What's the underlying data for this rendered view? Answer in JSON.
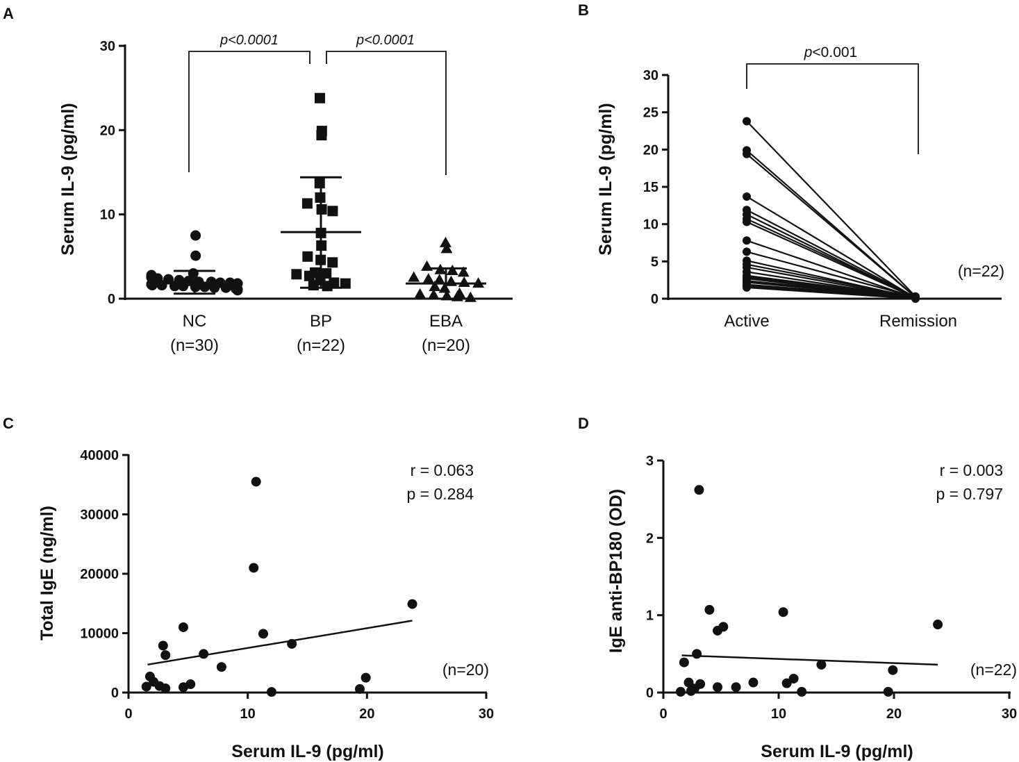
{
  "colors": {
    "ink": "#111111",
    "background": "#ffffff"
  },
  "chart_data": [
    {
      "panel": "A",
      "type": "scatter",
      "ylabel": "Serum IL-9 (pg/ml)",
      "ylim": [
        0,
        30
      ],
      "yticks": [
        "0",
        "10",
        "20",
        "30"
      ],
      "groups": [
        {
          "name": "NC",
          "n_label": "(n=30)",
          "marker": "circle",
          "mean": 1.9,
          "sd_upper": 3.3,
          "sd_lower": 0.6,
          "values": [
            7.5,
            5.1,
            3.0,
            2.8,
            2.5,
            2.4,
            2.2,
            2.1,
            2.0,
            2.0,
            1.9,
            1.9,
            1.8,
            1.8,
            1.8,
            1.7,
            1.7,
            1.6,
            1.6,
            1.5,
            1.5,
            1.4,
            1.4,
            1.3,
            1.3,
            1.2,
            1.1,
            1.0,
            2.3,
            2.6
          ]
        },
        {
          "name": "BP",
          "n_label": "(n=22)",
          "marker": "square",
          "mean": 7.9,
          "sd_upper": 14.4,
          "sd_lower": 1.3,
          "values": [
            23.8,
            19.9,
            19.4,
            13.7,
            12.0,
            11.3,
            10.6,
            10.4,
            7.8,
            6.3,
            5.0,
            4.6,
            4.3,
            3.1,
            3.0,
            2.9,
            2.7,
            2.2,
            1.9,
            1.8,
            1.6,
            1.5
          ]
        },
        {
          "name": "EBA",
          "n_label": "(n=20)",
          "marker": "triangle",
          "mean": 1.8,
          "sd_upper": 3.6,
          "sd_lower": 0.0,
          "values": [
            6.6,
            5.9,
            3.8,
            3.4,
            3.3,
            3.1,
            2.5,
            2.3,
            2.2,
            2.0,
            1.9,
            1.8,
            1.4,
            1.2,
            0.6,
            0.5,
            0.4,
            0.3,
            0.2,
            0.1
          ]
        }
      ],
      "comparisons": [
        {
          "from": "NC",
          "to": "BP",
          "label": "p<0.0001"
        },
        {
          "from": "BP",
          "to": "EBA",
          "label": "p<0.0001"
        }
      ]
    },
    {
      "panel": "B",
      "type": "line",
      "ylabel": "Serum IL-9 (pg/ml)",
      "ylim": [
        0,
        30
      ],
      "yticks": [
        "0",
        "5",
        "10",
        "15",
        "20",
        "25",
        "30"
      ],
      "categories": [
        "Active",
        "Remission"
      ],
      "n_label": "(n=22)",
      "sig_prefix": "p",
      "sig_suffix": "<0.001",
      "pairs": [
        [
          23.8,
          0.3
        ],
        [
          19.9,
          0.2
        ],
        [
          19.4,
          0.2
        ],
        [
          13.7,
          0.1
        ],
        [
          11.9,
          0.2
        ],
        [
          11.3,
          0.1
        ],
        [
          10.7,
          0.2
        ],
        [
          10.3,
          0.1
        ],
        [
          7.8,
          0.1
        ],
        [
          6.3,
          0.2
        ],
        [
          5.1,
          0.1
        ],
        [
          4.6,
          0.2
        ],
        [
          4.2,
          0.1
        ],
        [
          3.6,
          0.1
        ],
        [
          3.1,
          0.2
        ],
        [
          2.9,
          0.1
        ],
        [
          2.7,
          0.1
        ],
        [
          2.4,
          0.2
        ],
        [
          2.2,
          0.1
        ],
        [
          1.9,
          0.1
        ],
        [
          1.7,
          0.1
        ],
        [
          1.5,
          0.0
        ]
      ]
    },
    {
      "panel": "C",
      "type": "scatter",
      "xlabel": "Serum IL-9 (pg/ml)",
      "ylabel": "Total IgE (ng/ml)",
      "xlim": [
        0,
        30
      ],
      "ylim": [
        0,
        40000
      ],
      "xticks": [
        "0",
        "10",
        "20",
        "30"
      ],
      "yticks": [
        "0",
        "10000",
        "20000",
        "30000",
        "40000"
      ],
      "stat_r": "r = 0.063",
      "stat_p": "p = 0.284",
      "n_label": "(n=20)",
      "regression": {
        "x": [
          1.6,
          23.8
        ],
        "y": [
          4700,
          12100
        ]
      },
      "points": [
        [
          10.7,
          35500
        ],
        [
          10.5,
          21000
        ],
        [
          23.8,
          14900
        ],
        [
          4.6,
          11000
        ],
        [
          11.3,
          9900
        ],
        [
          13.7,
          8200
        ],
        [
          2.9,
          7900
        ],
        [
          3.1,
          6300
        ],
        [
          6.3,
          6500
        ],
        [
          7.8,
          4300
        ],
        [
          1.8,
          2700
        ],
        [
          2.1,
          1800
        ],
        [
          1.5,
          1000
        ],
        [
          2.6,
          1100
        ],
        [
          3.1,
          700
        ],
        [
          4.6,
          900
        ],
        [
          5.2,
          1400
        ],
        [
          12.0,
          100
        ],
        [
          19.9,
          2500
        ],
        [
          19.4,
          600
        ]
      ]
    },
    {
      "panel": "D",
      "type": "scatter",
      "xlabel": "Serum IL-9 (pg/ml)",
      "ylabel": "IgE anti-BP180 (OD)",
      "xlim": [
        0,
        30
      ],
      "ylim": [
        0,
        3
      ],
      "xticks": [
        "0",
        "10",
        "20",
        "30"
      ],
      "yticks": [
        "0",
        "1",
        "2",
        "3"
      ],
      "stat_r": "r = 0.003",
      "stat_p": "p = 0.797",
      "n_label": "(n=22)",
      "regression": {
        "x": [
          1.6,
          23.8
        ],
        "y": [
          0.48,
          0.36
        ]
      },
      "points": [
        [
          3.1,
          2.62
        ],
        [
          4.0,
          1.07
        ],
        [
          10.4,
          1.04
        ],
        [
          23.8,
          0.88
        ],
        [
          5.2,
          0.85
        ],
        [
          4.7,
          0.8
        ],
        [
          2.9,
          0.5
        ],
        [
          1.8,
          0.39
        ],
        [
          13.7,
          0.36
        ],
        [
          19.9,
          0.29
        ],
        [
          11.3,
          0.18
        ],
        [
          2.2,
          0.13
        ],
        [
          7.8,
          0.13
        ],
        [
          10.7,
          0.12
        ],
        [
          3.2,
          0.11
        ],
        [
          4.7,
          0.07
        ],
        [
          6.3,
          0.07
        ],
        [
          2.7,
          0.05
        ],
        [
          2.4,
          0.02
        ],
        [
          1.5,
          0.01
        ],
        [
          12.0,
          0.01
        ],
        [
          19.5,
          0.01
        ]
      ]
    }
  ]
}
